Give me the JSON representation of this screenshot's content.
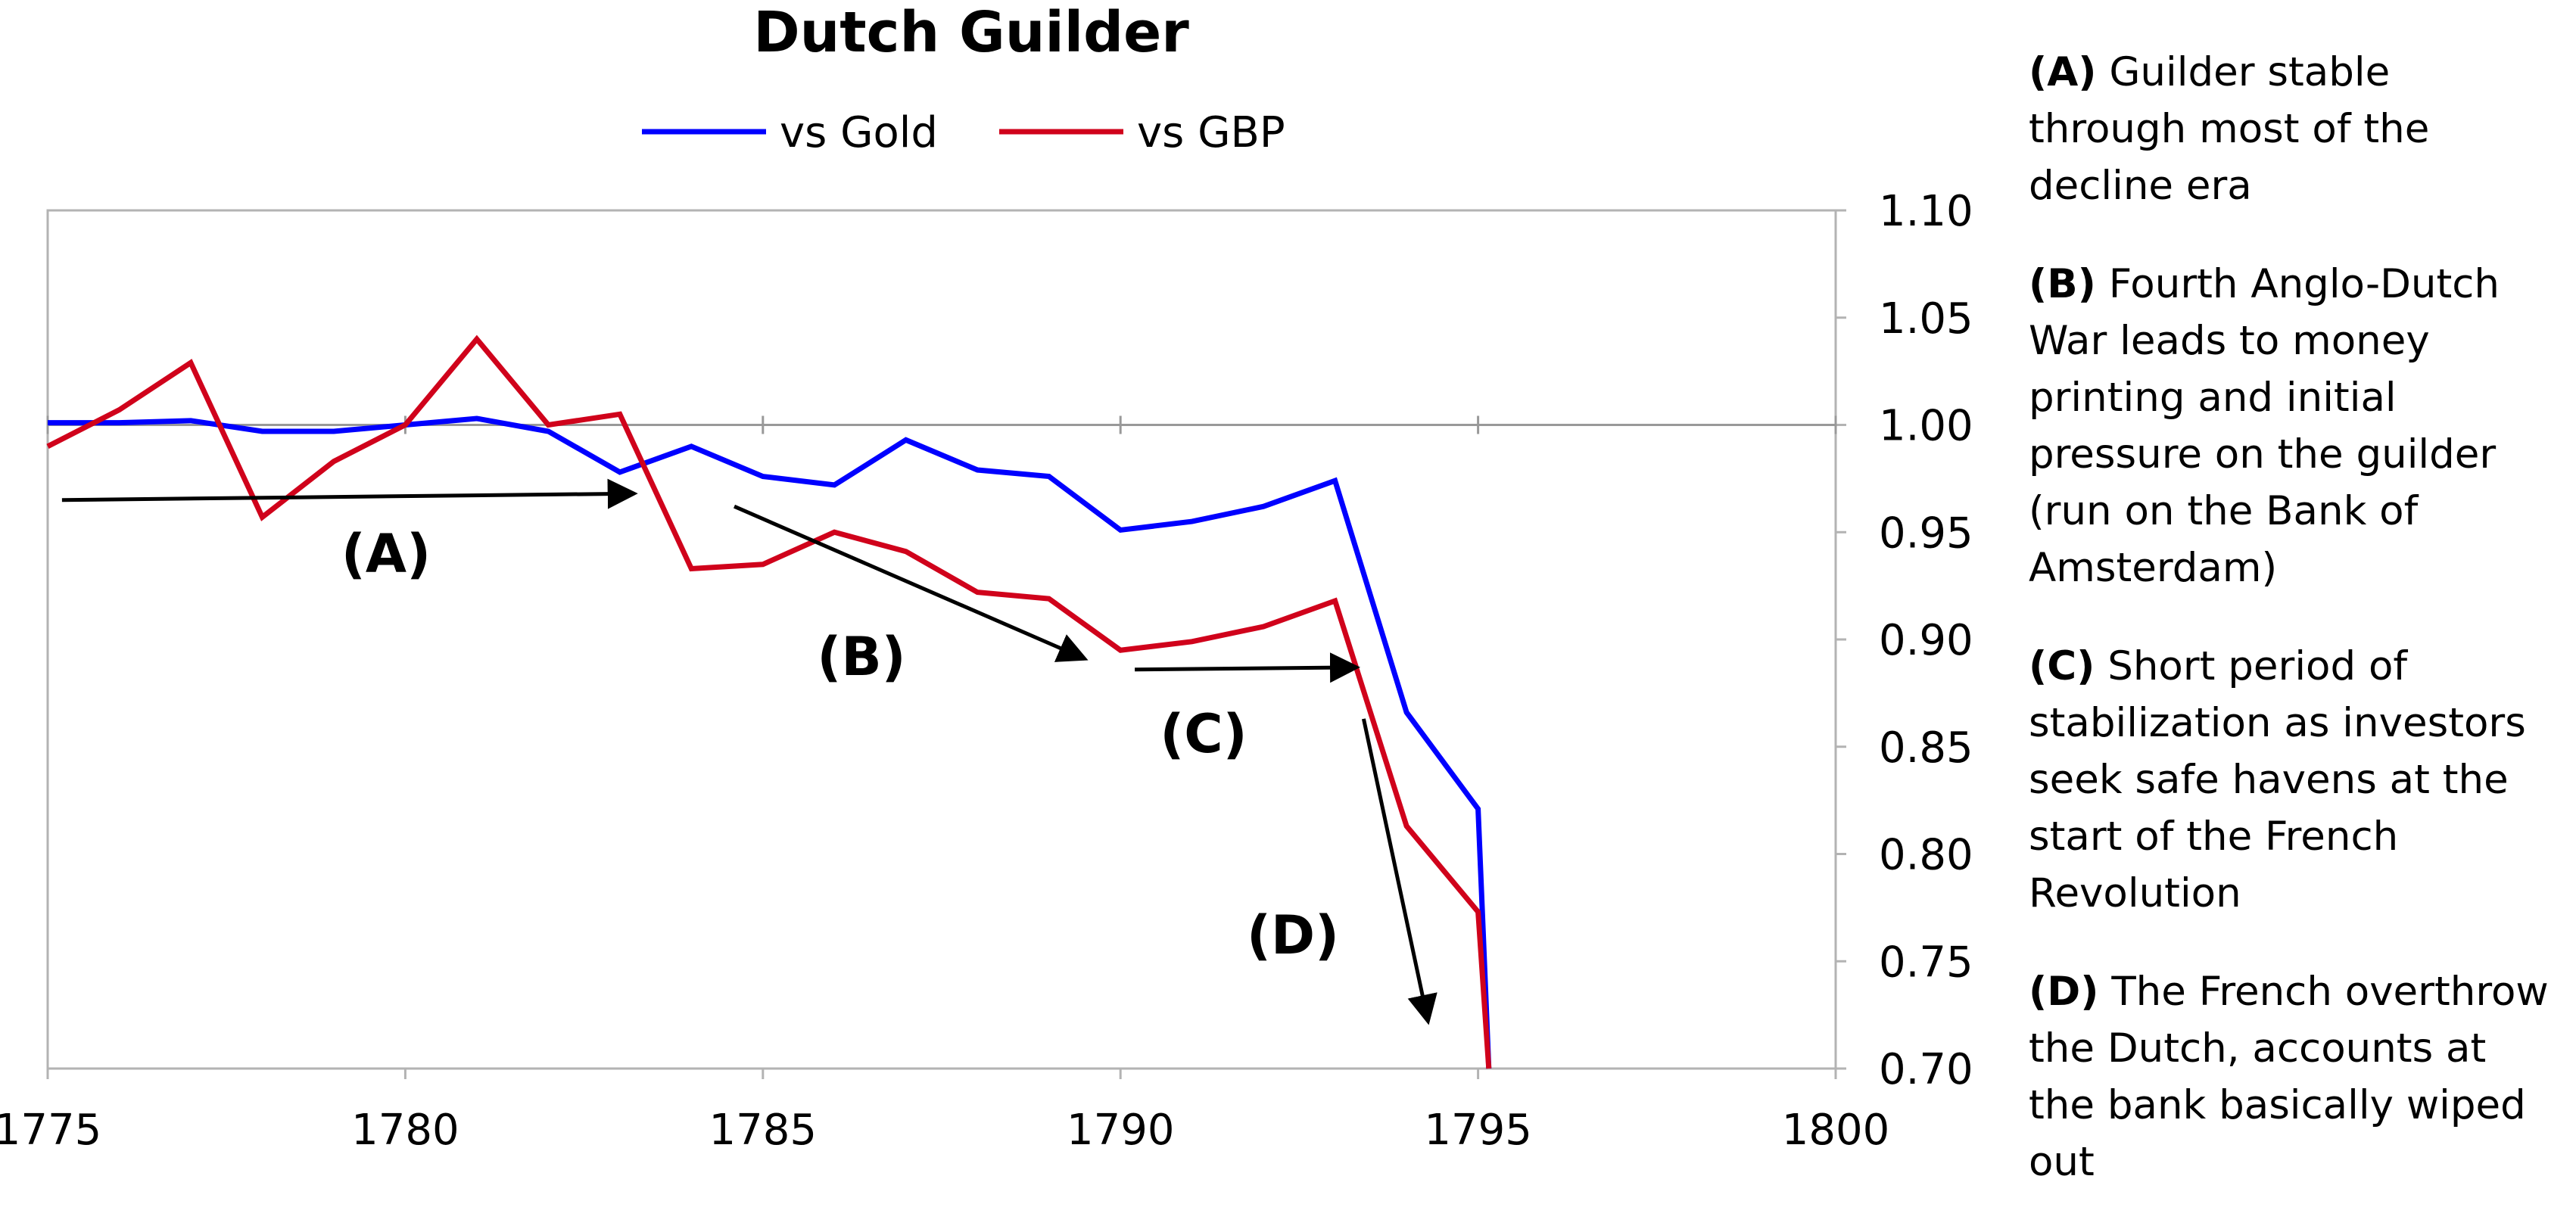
{
  "chart_data": {
    "type": "line",
    "title": "Dutch Guilder",
    "xlabel": "",
    "ylabel": "",
    "x": [
      1775,
      1776,
      1777,
      1778,
      1779,
      1780,
      1781,
      1782,
      1783,
      1784,
      1785,
      1786,
      1787,
      1788,
      1789,
      1790,
      1791,
      1792,
      1793,
      1794,
      1795,
      1795.15
    ],
    "series": [
      {
        "name": "vs Gold",
        "color": "#0000ff",
        "values": [
          1.001,
          1.001,
          1.002,
          0.997,
          0.997,
          1.0,
          1.003,
          0.997,
          0.978,
          0.99,
          0.976,
          0.972,
          0.993,
          0.979,
          0.976,
          0.951,
          0.955,
          0.962,
          0.974,
          0.866,
          0.821,
          0.7
        ]
      },
      {
        "name": "vs GBP",
        "color": "#d0021b",
        "values": [
          0.99,
          1.007,
          1.029,
          0.957,
          0.983,
          1.0,
          1.04,
          1.0,
          1.005,
          0.933,
          0.935,
          0.95,
          0.941,
          0.922,
          0.919,
          0.895,
          0.899,
          0.906,
          0.918,
          0.813,
          0.773,
          0.7
        ]
      }
    ],
    "xlim": [
      1775,
      1800
    ],
    "ylim": [
      0.7,
      1.1
    ],
    "x_ticks": [
      "1775",
      "1780",
      "1785",
      "1790",
      "1795",
      "1800"
    ],
    "y_ticks": [
      "1.10",
      "1.05",
      "1.00",
      "0.95",
      "0.90",
      "0.85",
      "0.80",
      "0.75",
      "0.70"
    ],
    "y_axis_side": "right",
    "reference_line": 1.0,
    "grid": false,
    "legend_position": "top-center",
    "annotations": [
      {
        "label": "(A)",
        "text": "Guilder stable through most of the decline era",
        "arrow_from": [
          1775.2,
          0.965
        ],
        "arrow_to": [
          1783.2,
          0.968
        ]
      },
      {
        "label": "(B)",
        "text": "Fourth Anglo-Dutch War leads to money printing and initial pressure on the guilder (run on the Bank of Amsterdam)",
        "arrow_from": [
          1784.6,
          0.962
        ],
        "arrow_to": [
          1789.5,
          0.891
        ]
      },
      {
        "label": "(C)",
        "text": "Short period of stabilization as investors seek safe havens at the start of the French Revolution",
        "arrow_from": [
          1790.2,
          0.886
        ],
        "arrow_to": [
          1793.3,
          0.887
        ]
      },
      {
        "label": "(D)",
        "text": "The French overthrow the Dutch, accounts at the bank basically wiped out",
        "arrow_from": [
          1793.4,
          0.863
        ],
        "arrow_to": [
          1794.3,
          0.722
        ]
      }
    ]
  }
}
